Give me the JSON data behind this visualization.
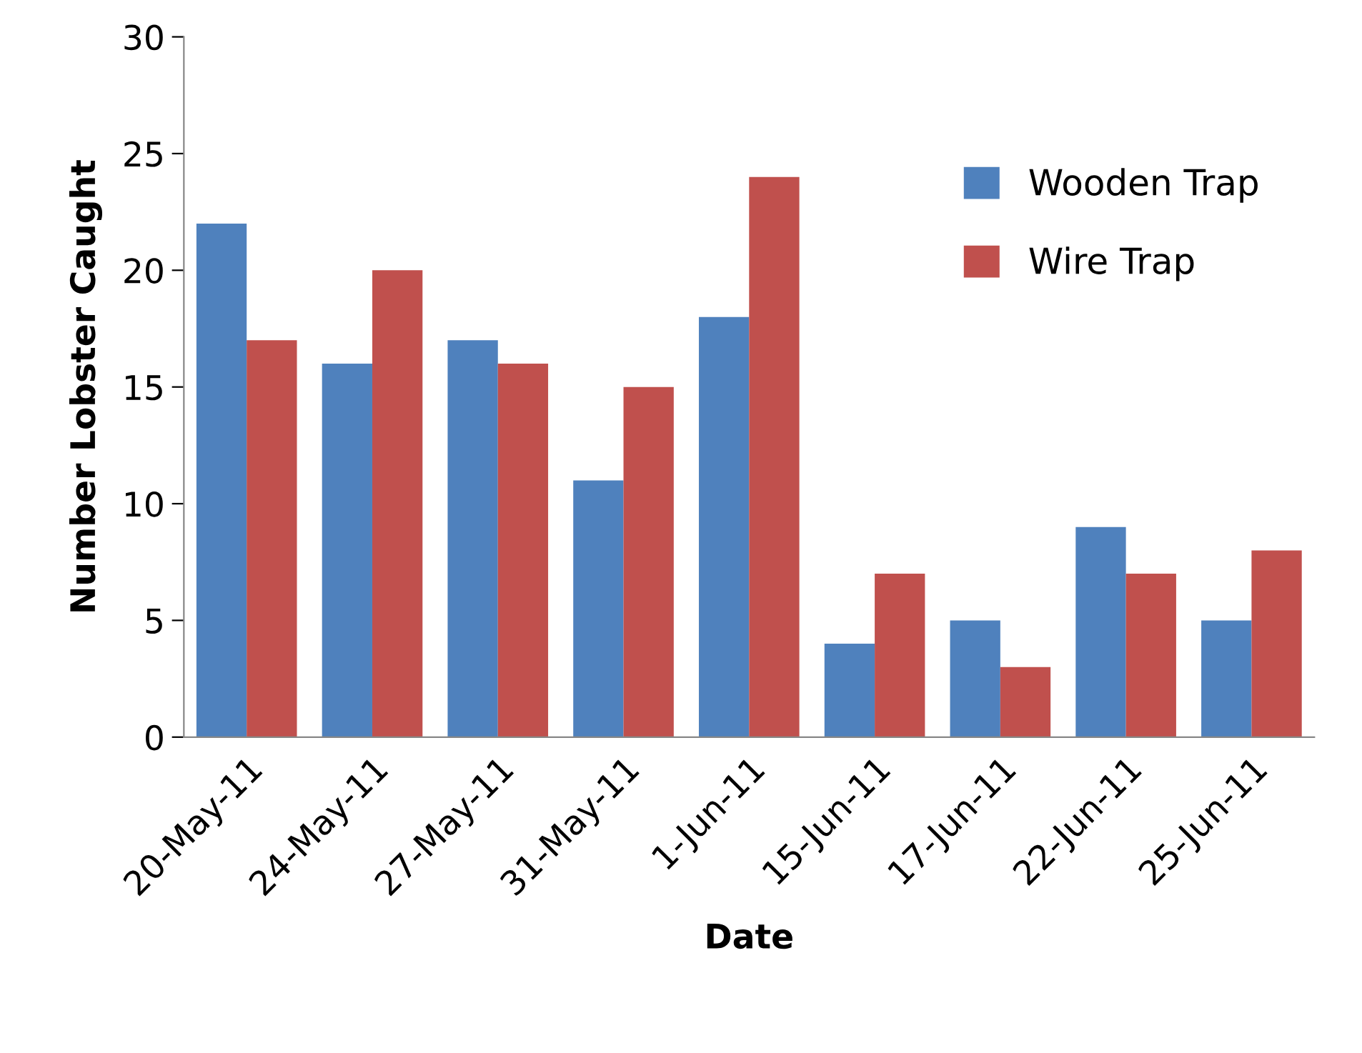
{
  "chart_data": {
    "type": "bar",
    "xlabel": "Date",
    "ylabel": "Number Lobster Caught",
    "categories": [
      "20-May-11",
      "24-May-11",
      "27-May-11",
      "31-May-11",
      "1-Jun-11",
      "15-Jun-11",
      "17-Jun-11",
      "22-Jun-11",
      "25-Jun-11"
    ],
    "series": [
      {
        "name": "Wooden Trap",
        "color": "#4f81bd",
        "values": [
          22,
          16,
          17,
          11,
          18,
          4,
          5,
          9,
          5
        ]
      },
      {
        "name": "Wire Trap",
        "color": "#c0504d",
        "values": [
          17,
          20,
          16,
          15,
          24,
          7,
          3,
          7,
          8
        ]
      }
    ],
    "ylim": [
      0,
      30
    ],
    "yticks": [
      0,
      5,
      10,
      15,
      20,
      25,
      30
    ],
    "grid": false,
    "legend": "top right"
  }
}
